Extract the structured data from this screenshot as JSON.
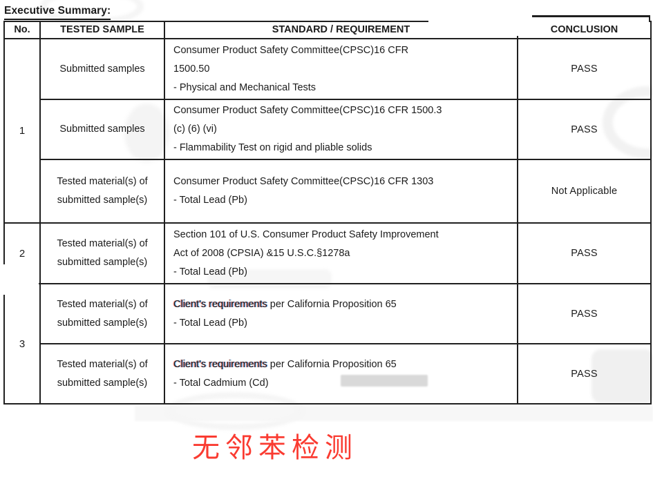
{
  "title": "Executive Summary:",
  "colors": {
    "text": "#1b1b1b",
    "border": "#1f1f1f",
    "red_caption": "#fa3b31",
    "fringe_red": "#fc4628",
    "fringe_blue": "#007dff",
    "redaction_gray": "#d9d9d9"
  },
  "table": {
    "headers": [
      "No.",
      "TESTED SAMPLE",
      "STANDARD / REQUIREMENT",
      "CONCLUSION"
    ],
    "rows": [
      {
        "no": "1",
        "tested_sample": "Submitted samples",
        "standard_lines": [
          "Consumer Product Safety Committee(CPSC)16 CFR",
          "1500.50",
          "- Physical and Mechanical Tests"
        ],
        "conclusion": "PASS"
      },
      {
        "tested_sample": "Submitted samples",
        "standard_lines": [
          "Consumer Product Safety Committee(CPSC)16 CFR 1500.3",
          "(c) (6) (vi)",
          "- Flammability Test on rigid and pliable solids"
        ],
        "conclusion": "PASS"
      },
      {
        "tested_sample": "Tested material(s) of submitted sample(s)",
        "standard_lines": [
          "Consumer Product Safety Committee(CPSC)16 CFR 1303",
          "- Total Lead (Pb)"
        ],
        "conclusion": "Not Applicable"
      },
      {
        "no": "2",
        "tested_sample": "Tested material(s) of submitted sample(s)",
        "standard_lines": [
          "Section 101 of U.S. Consumer Product Safety Improvement",
          "Act of 2008 (CPSIA) &15 U.S.C.§1278a",
          "- Total Lead (Pb)"
        ],
        "conclusion": "PASS"
      },
      {
        "no": "3",
        "tested_sample": "Tested material(s) of submitted sample(s)",
        "standard": {
          "highlight": "Client's requirements",
          "after": " per California Proposition 65",
          "line2": "- Total Lead (Pb)"
        },
        "conclusion": "PASS"
      },
      {
        "tested_sample": "Tested material(s) of submitted sample(s)",
        "standard": {
          "highlight": "Client's requirements",
          "after": " per California Proposition 65",
          "line2": "- Total Cadmium (Cd)"
        },
        "conclusion": "PASS"
      }
    ]
  },
  "caption": "无邻苯检测"
}
